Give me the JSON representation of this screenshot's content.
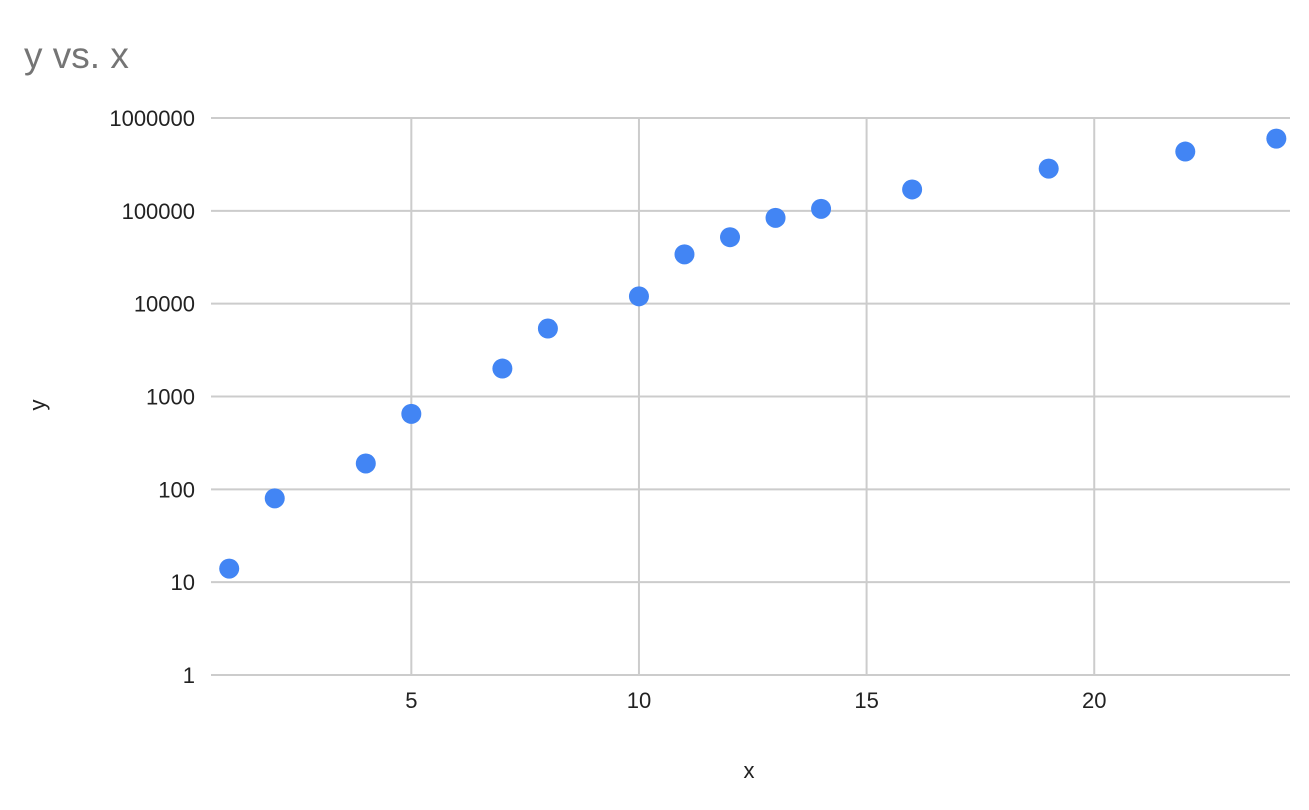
{
  "chart_data": {
    "type": "scatter",
    "title": "y vs. x",
    "xlabel": "x",
    "ylabel": "y",
    "xlim": [
      0.6,
      24.3
    ],
    "ylim": [
      1,
      1000000
    ],
    "yscale": "log",
    "x_ticks": [
      5,
      10,
      15,
      20
    ],
    "y_ticks": [
      1,
      10,
      100,
      1000,
      10000,
      100000,
      1000000
    ],
    "y_tick_labels": [
      "1",
      "10",
      "100",
      "1000",
      "10000",
      "100000",
      "1000000"
    ],
    "grid": true,
    "legend": "none",
    "colors": {
      "point": "#4285f4",
      "grid": "#cccccc",
      "title": "#757575",
      "text": "#222222"
    },
    "series": [
      {
        "x": [
          1,
          2,
          4,
          5,
          7,
          8,
          10,
          11,
          12,
          13,
          14,
          16,
          19,
          22,
          24
        ],
        "y": [
          14,
          80,
          190,
          650,
          2000,
          5400,
          12000,
          34000,
          52000,
          84000,
          105000,
          170000,
          285000,
          435000,
          600000
        ]
      }
    ]
  }
}
